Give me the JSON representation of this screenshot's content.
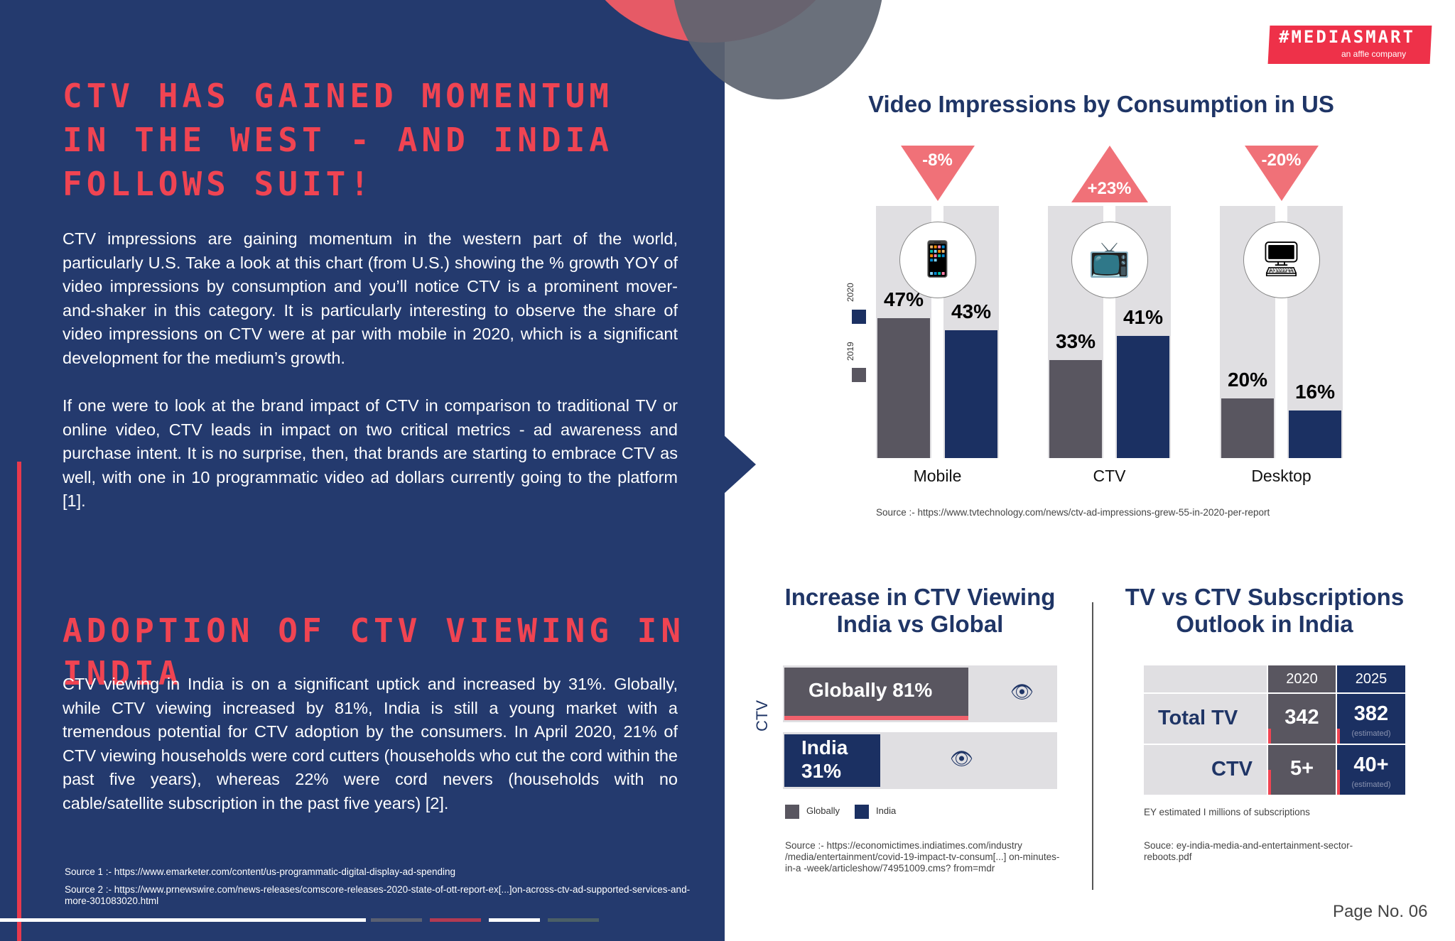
{
  "left": {
    "headline1": "CTV HAS GAINED MOMENTUM IN THE WEST - AND INDIA FOLLOWS SUIT!",
    "paragraph1": "CTV impressions are gaining momentum in the western part of the world, particularly U.S. Take a look at this chart (from U.S.) showing the % growth YOY of video impressions by consumption and you’ll notice CTV is a prominent mover-and-shaker in this category. It is particularly interesting to observe the share of video impressions on CTV were at par with mobile in 2020, which is a significant development for the medium’s growth.",
    "paragraph2": "If one were to look at the brand impact of CTV in comparison to traditional TV or online video, CTV leads in impact on two critical metrics - ad awareness and purchase intent. It is no surprise, then, that brands are starting to embrace CTV as well, with one in 10 programmatic video ad dollars currently going to the platform [1].",
    "headline2": "ADOPTION OF CTV VIEWING IN INDIA",
    "paragraph3": "CTV viewing in India is on a significant uptick and increased by 31%. Globally, while CTV viewing increased by 81%, India is still a young market with a tremendous potential for CTV adoption by the consumers. In April 2020, 21% of CTV viewing households were cord cutters (households who cut the cord within the past five years), whereas 22% were cord nevers (households with no cable/satellite subscription in the past five years) [2].",
    "source1": "Source 1 :- https://www.emarketer.com/content/us-programmatic-digital-display-ad-spending",
    "source2": "Source 2 :- https://www.prnewswire.com/news-releases/comscore-releases-2020-state-of-ott-report-ex[...]on-across-ctv-ad-supported-services-and-more-301083020.html"
  },
  "logo": {
    "main": "#MEDIASMART",
    "sub": "an affle company"
  },
  "colors": {
    "navy": "#243a6e",
    "accent_red": "#f04452",
    "bar_2019": "#595660",
    "bar_2020": "#1b3062",
    "triangle": "#f07178"
  },
  "chart_data": [
    {
      "type": "bar",
      "title": "Video Impressions by Consumption in US",
      "categories": [
        "Mobile",
        "CTV",
        "Desktop"
      ],
      "series": [
        {
          "name": "2019",
          "values": [
            47,
            33,
            20
          ]
        },
        {
          "name": "2020",
          "values": [
            43,
            41,
            16
          ]
        }
      ],
      "value_labels": {
        "2019": [
          "47%",
          "33%",
          "20%"
        ],
        "2020": [
          "43%",
          "41%",
          "16%"
        ]
      },
      "changes": [
        "-8%",
        "+23%",
        "-20%"
      ],
      "change_direction": [
        "down",
        "up",
        "down"
      ],
      "icons": [
        "smartphone-icon",
        "television-icon",
        "desktop-computer-icon"
      ],
      "ylim": [
        0,
        100
      ],
      "legend_placement": "left-vertical",
      "source": "Source :- https://www.tvtechnology.com/news/ctv-ad-impressions-grew-55-in-2020-per-report"
    },
    {
      "type": "bar",
      "orientation": "horizontal",
      "title": "Increase in CTV Viewing India vs Global",
      "ylabel": "CTV",
      "categories": [
        "Globally",
        "India"
      ],
      "values": [
        81,
        31
      ],
      "bar_labels": [
        "Globally 81%",
        "India 31%"
      ],
      "legend": [
        "Globally",
        "India"
      ],
      "icons": [
        "eye-icon",
        "eye-icon"
      ],
      "xlim": [
        0,
        100
      ],
      "source": "Source :- https://economictimes.indiatimes.com/industry /media/entertainment/covid-19-impact-tv-consum[...] on-minutes-in-a -week/articleshow/74951009.cms? from=mdr"
    },
    {
      "type": "table",
      "title": "TV vs CTV Subscriptions Outlook in India",
      "columns": [
        "2020",
        "2025"
      ],
      "rows": [
        {
          "label": "Total TV",
          "values": [
            "342",
            "382"
          ],
          "note_2025": "(estimated)"
        },
        {
          "label": "CTV",
          "values": [
            "5+",
            "40+"
          ],
          "note_2025": "(estimated)"
        }
      ],
      "footnote": "EY estimated   I   millions of subscriptions",
      "source": "Souce: ey-india-media-and-entertainment-sector-reboots.pdf"
    }
  ],
  "page_number": "Page No. 06"
}
